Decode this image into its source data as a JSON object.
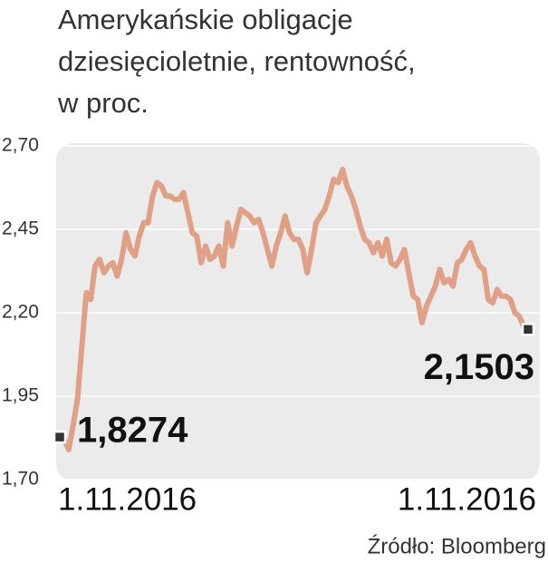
{
  "chart_data": {
    "type": "line",
    "title": [
      "Amerykańskie obligacje",
      "dziesięcioletnie,  rentowność,",
      "w proc."
    ],
    "source": "Źródło: Bloomberg",
    "categories": [
      "1.11.2016",
      null,
      null,
      null,
      null,
      null,
      null,
      null,
      null,
      null,
      null,
      null,
      null,
      null,
      null,
      null,
      null,
      null,
      null,
      null,
      null,
      null,
      null,
      null,
      null,
      null,
      null,
      null,
      null,
      null,
      null,
      null,
      null,
      null,
      null,
      null,
      null,
      null,
      null,
      null,
      null,
      null,
      null,
      null,
      null,
      null,
      null,
      null,
      null,
      null,
      null,
      null,
      null,
      null,
      null,
      null,
      null,
      null,
      null,
      null,
      null,
      null,
      null,
      null,
      null,
      null,
      null,
      null,
      null,
      null,
      null,
      null,
      null,
      null,
      null,
      null,
      null,
      null,
      null,
      null,
      null,
      null,
      null,
      null,
      null,
      null,
      null,
      null,
      null,
      null,
      null,
      null,
      null,
      null,
      null,
      null,
      null,
      null,
      null,
      null,
      null,
      null,
      null,
      null,
      null,
      null,
      "1.11.2016"
    ],
    "values": [
      1.8274,
      1.82,
      1.79,
      1.86,
      1.94,
      2.1,
      2.26,
      2.24,
      2.34,
      2.36,
      2.32,
      2.34,
      2.35,
      2.31,
      2.36,
      2.44,
      2.39,
      2.37,
      2.43,
      2.47,
      2.47,
      2.55,
      2.59,
      2.58,
      2.55,
      2.55,
      2.54,
      2.54,
      2.56,
      2.5,
      2.44,
      2.43,
      2.35,
      2.4,
      2.36,
      2.37,
      2.4,
      2.34,
      2.47,
      2.4,
      2.46,
      2.51,
      2.5,
      2.49,
      2.47,
      2.48,
      2.44,
      2.39,
      2.34,
      2.4,
      2.44,
      2.49,
      2.44,
      2.42,
      2.42,
      2.39,
      2.32,
      2.39,
      2.47,
      2.49,
      2.51,
      2.55,
      2.6,
      2.59,
      2.63,
      2.58,
      2.55,
      2.51,
      2.46,
      2.42,
      2.41,
      2.38,
      2.41,
      2.37,
      2.42,
      2.35,
      2.34,
      2.36,
      2.39,
      2.32,
      2.25,
      2.24,
      2.17,
      2.22,
      2.25,
      2.28,
      2.33,
      2.29,
      2.3,
      2.28,
      2.35,
      2.36,
      2.39,
      2.41,
      2.37,
      2.34,
      2.33,
      2.24,
      2.23,
      2.27,
      2.25,
      2.25,
      2.24,
      2.2,
      2.19,
      2.16,
      2.1503
    ],
    "value_labels": [
      "1,8274",
      null,
      null,
      null,
      null,
      null,
      null,
      null,
      null,
      null,
      null,
      null,
      null,
      null,
      null,
      null,
      null,
      null,
      null,
      null,
      null,
      null,
      null,
      null,
      null,
      null,
      null,
      null,
      null,
      null,
      null,
      null,
      null,
      null,
      null,
      null,
      null,
      null,
      null,
      null,
      null,
      null,
      null,
      null,
      null,
      null,
      null,
      null,
      null,
      null,
      null,
      null,
      null,
      null,
      null,
      null,
      null,
      null,
      null,
      null,
      null,
      null,
      null,
      null,
      null,
      null,
      null,
      null,
      null,
      null,
      null,
      null,
      null,
      null,
      null,
      null,
      null,
      null,
      null,
      null,
      null,
      null,
      null,
      null,
      null,
      null,
      null,
      null,
      null,
      null,
      null,
      null,
      null,
      null,
      null,
      null,
      null,
      null,
      null,
      null,
      null,
      null,
      null,
      null,
      null,
      null,
      "2,1503"
    ],
    "color": "#e0a086",
    "ylim": [
      1.7,
      2.7
    ],
    "yticks": [
      {
        "value": 1.7,
        "label": "1,70"
      },
      {
        "value": 1.95,
        "label": "1,95"
      },
      {
        "value": 2.2,
        "label": "2,20"
      },
      {
        "value": 2.45,
        "label": "2,45"
      },
      {
        "value": 2.7,
        "label": "2,70"
      }
    ],
    "grid": true
  }
}
